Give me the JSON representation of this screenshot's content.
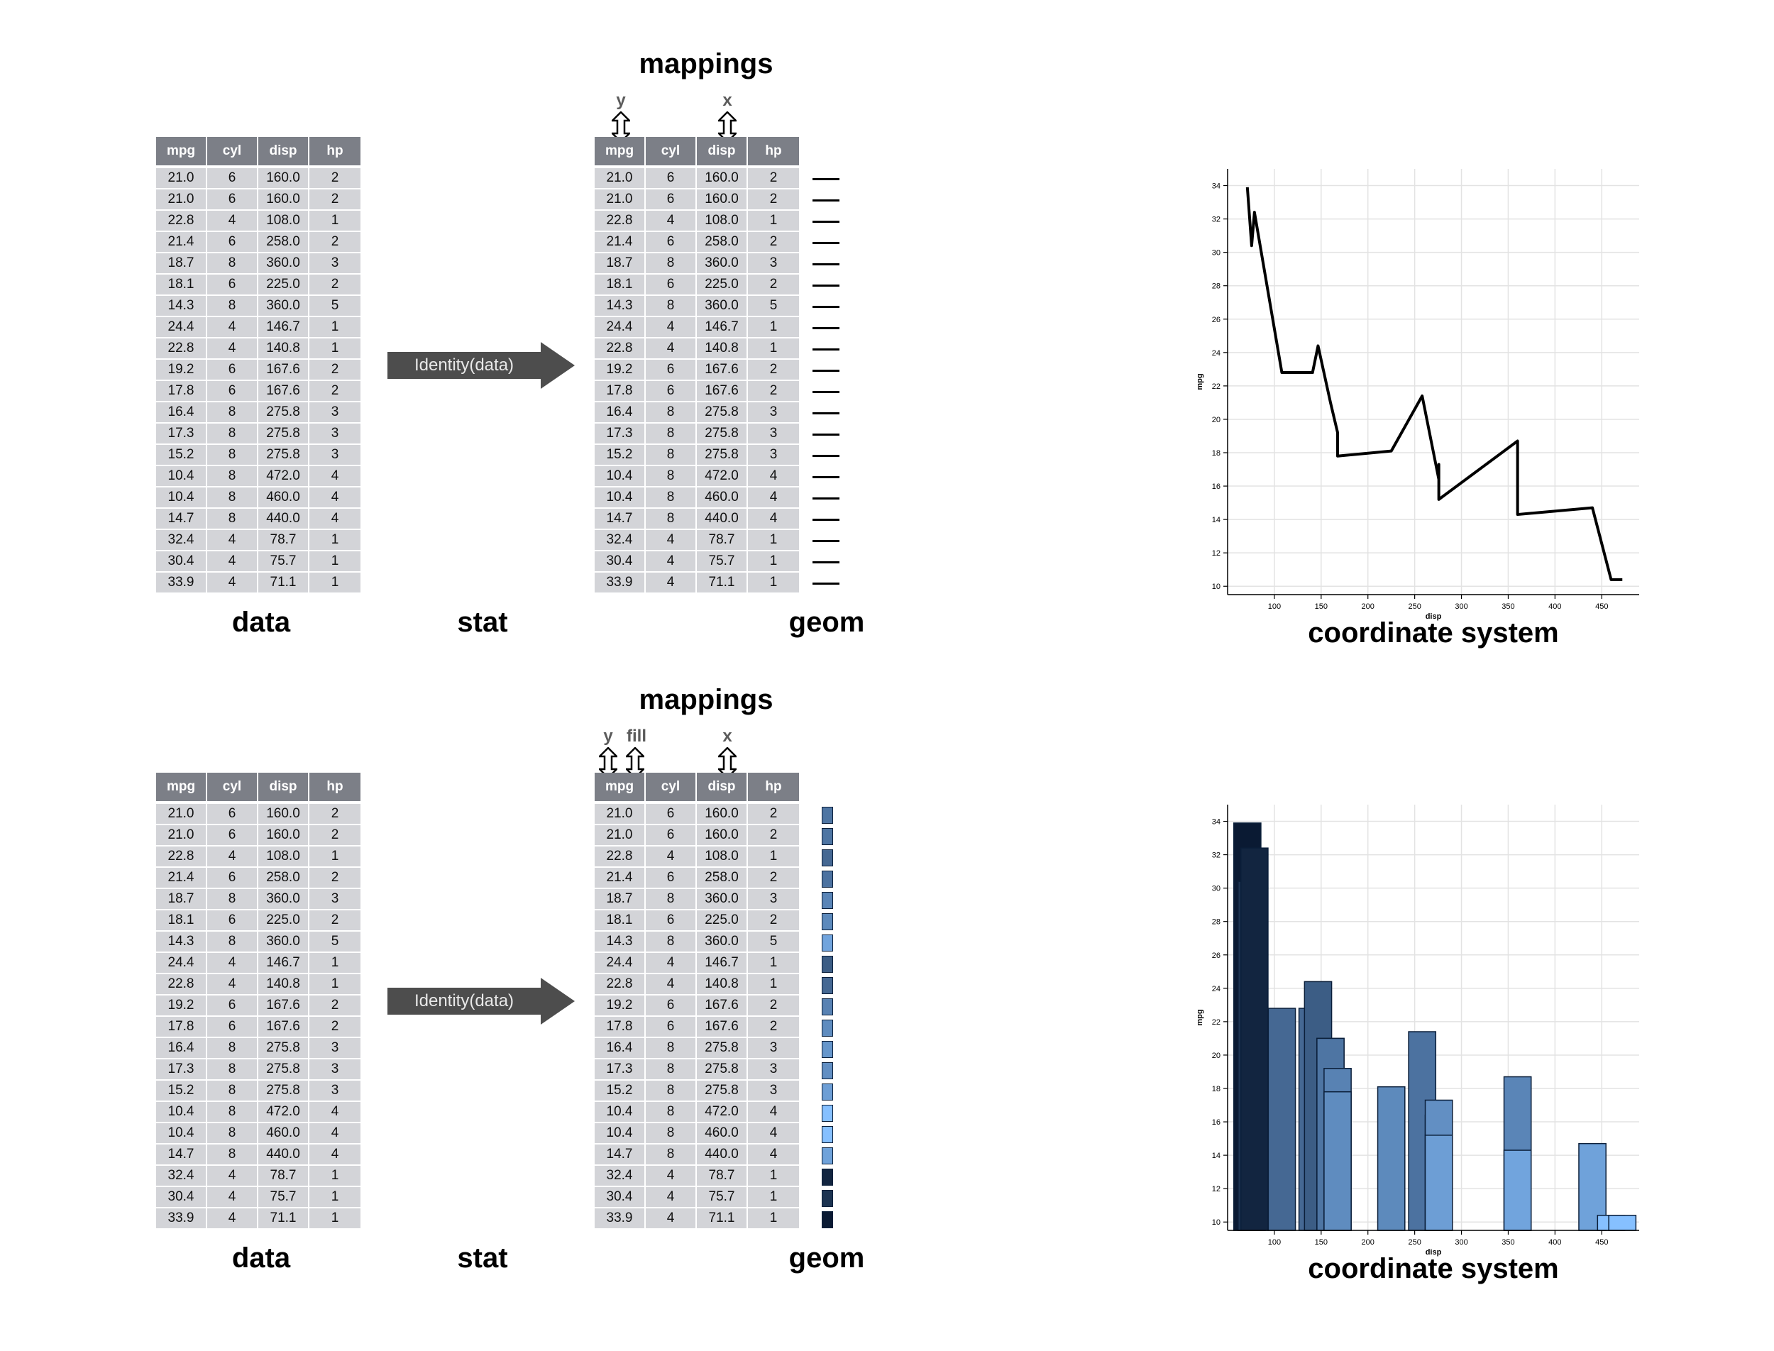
{
  "columns": [
    "mpg",
    "cyl",
    "disp",
    "hp"
  ],
  "rows": [
    [
      "21.0",
      "6",
      "160.0",
      "2"
    ],
    [
      "21.0",
      "6",
      "160.0",
      "2"
    ],
    [
      "22.8",
      "4",
      "108.0",
      "1"
    ],
    [
      "21.4",
      "6",
      "258.0",
      "2"
    ],
    [
      "18.7",
      "8",
      "360.0",
      "3"
    ],
    [
      "18.1",
      "6",
      "225.0",
      "2"
    ],
    [
      "14.3",
      "8",
      "360.0",
      "5"
    ],
    [
      "24.4",
      "4",
      "146.7",
      "1"
    ],
    [
      "22.8",
      "4",
      "140.8",
      "1"
    ],
    [
      "19.2",
      "6",
      "167.6",
      "2"
    ],
    [
      "17.8",
      "6",
      "167.6",
      "2"
    ],
    [
      "16.4",
      "8",
      "275.8",
      "3"
    ],
    [
      "17.3",
      "8",
      "275.8",
      "3"
    ],
    [
      "15.2",
      "8",
      "275.8",
      "3"
    ],
    [
      "10.4",
      "8",
      "472.0",
      "4"
    ],
    [
      "10.4",
      "8",
      "460.0",
      "4"
    ],
    [
      "14.7",
      "8",
      "440.0",
      "4"
    ],
    [
      "32.4",
      "4",
      "78.7",
      "1"
    ],
    [
      "30.4",
      "4",
      "75.7",
      "1"
    ],
    [
      "33.9",
      "4",
      "71.1",
      "1"
    ]
  ],
  "labels": {
    "data": "data",
    "stat": "stat",
    "geom": "geom",
    "mappings": "mappings",
    "coord": "coordinate system",
    "stat_arrow": "Identity(data)"
  },
  "panel_top": {
    "map_y": "y",
    "map_x": "x"
  },
  "panel_bottom": {
    "map_y": "y",
    "map_fill": "fill",
    "map_x": "x"
  },
  "colors": {
    "header_bg": "#7c7f87",
    "cell_bg": "#d3d4d8",
    "arrow_bg": "#4d4d4d",
    "fill_low": "#0a1a33",
    "fill_high": "#86c0ff"
  },
  "chart_data": [
    {
      "type": "line",
      "x": [
        71.1,
        75.7,
        78.7,
        108.0,
        140.8,
        146.7,
        160.0,
        160.0,
        167.6,
        167.6,
        225.0,
        258.0,
        275.8,
        275.8,
        275.8,
        360.0,
        360.0,
        440.0,
        460.0,
        472.0
      ],
      "y": [
        33.9,
        30.4,
        32.4,
        22.8,
        22.8,
        24.4,
        21.0,
        21.0,
        19.2,
        17.8,
        18.1,
        21.4,
        16.4,
        17.3,
        15.2,
        18.7,
        14.3,
        14.7,
        10.4,
        10.4
      ],
      "xlabel": "disp",
      "ylabel": "mpg",
      "xlim": [
        50,
        490
      ],
      "ylim": [
        9.5,
        35
      ],
      "xticks": [
        100,
        150,
        200,
        250,
        300,
        350,
        400,
        450
      ],
      "yticks": [
        10,
        12,
        14,
        16,
        18,
        20,
        22,
        24,
        26,
        28,
        30,
        32,
        34
      ],
      "grid": true
    },
    {
      "type": "bar",
      "x": [
        71.1,
        75.7,
        78.7,
        108.0,
        140.8,
        146.7,
        160.0,
        160.0,
        167.6,
        167.6,
        225.0,
        258.0,
        275.8,
        275.8,
        275.8,
        360.0,
        360.0,
        440.0,
        460.0,
        472.0
      ],
      "y": [
        33.9,
        30.4,
        32.4,
        22.8,
        22.8,
        24.4,
        21.0,
        21.0,
        19.2,
        17.8,
        18.1,
        21.4,
        16.4,
        17.3,
        15.2,
        18.7,
        14.3,
        14.7,
        10.4,
        10.4
      ],
      "fill_variable": "mpg",
      "xlabel": "disp",
      "ylabel": "mpg",
      "xlim": [
        50,
        490
      ],
      "ylim": [
        9.5,
        35
      ],
      "xticks": [
        100,
        150,
        200,
        250,
        300,
        350,
        400,
        450
      ],
      "yticks": [
        10,
        12,
        14,
        16,
        18,
        20,
        22,
        24,
        26,
        28,
        30,
        32,
        34
      ],
      "grid": true
    }
  ]
}
